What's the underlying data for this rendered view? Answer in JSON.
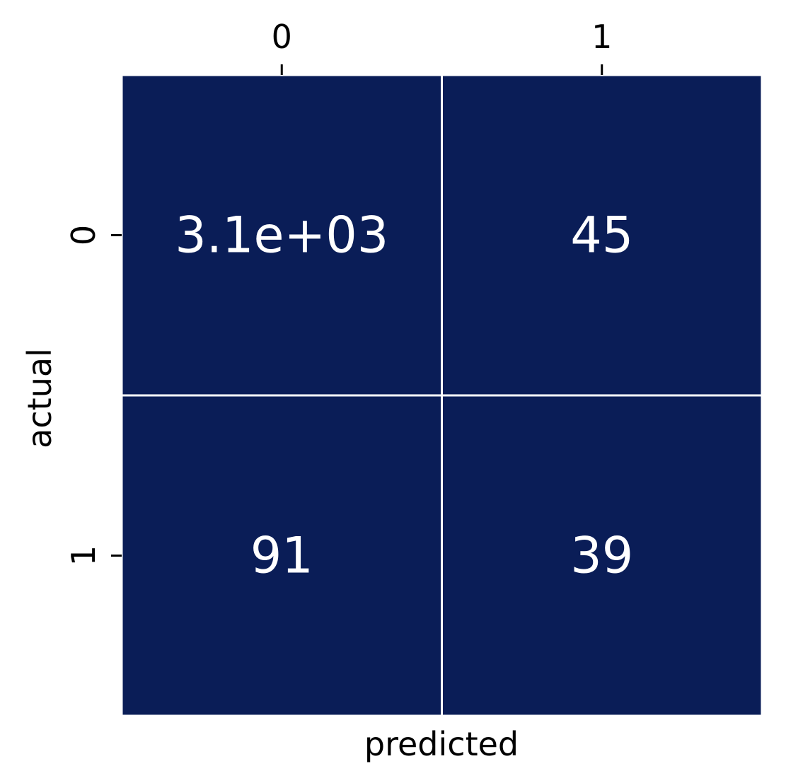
{
  "chart_data": {
    "type": "heatmap",
    "title": "",
    "xlabel": "predicted",
    "ylabel": "actual",
    "x_categories": [
      "0",
      "1"
    ],
    "y_categories": [
      "0",
      "1"
    ],
    "x_tick_position": "top",
    "values": [
      [
        3100,
        45
      ],
      [
        91,
        39
      ]
    ],
    "annotations": [
      [
        "3.1e+03",
        "45"
      ],
      [
        "91",
        "39"
      ]
    ],
    "cell_color": "#0a1d57",
    "annotation_color": "#ffffff",
    "grid_line_color": "#ffffff",
    "colorbar": false
  }
}
